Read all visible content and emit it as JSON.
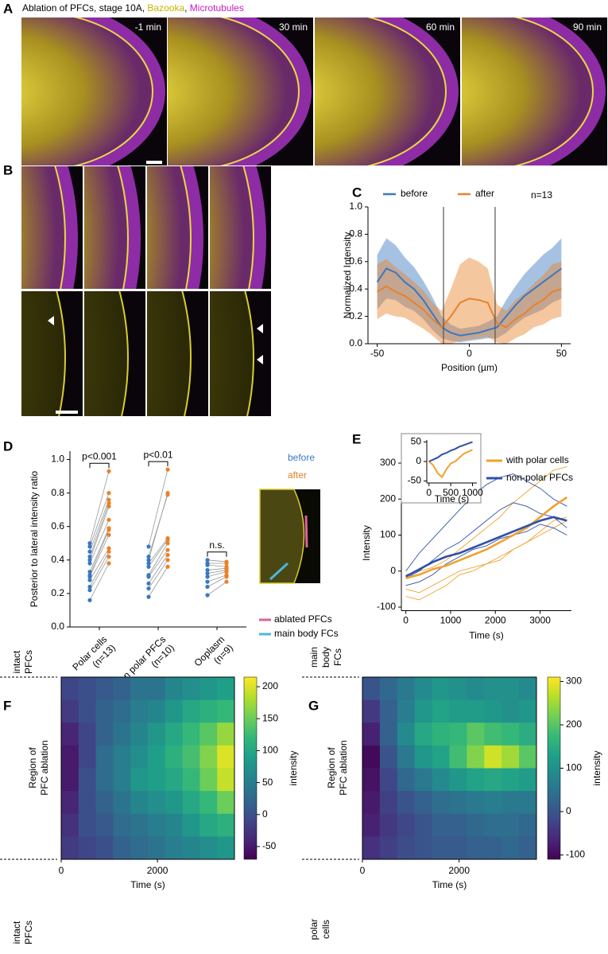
{
  "figure": {
    "panel_labels": [
      "A",
      "B",
      "C",
      "D",
      "E",
      "F",
      "G"
    ],
    "A": {
      "title_parts": [
        "Ablation of PFCs, stage 10A, ",
        "Bazooka",
        ", ",
        "Microtubules"
      ],
      "title_colors": [
        "#000000",
        "#c9b300",
        "#000000",
        "#c21fc2"
      ],
      "times": [
        "-1 min",
        "30 min",
        "60 min",
        "90 min"
      ]
    }
  },
  "chart_data": [
    {
      "type": "line_band",
      "x": [
        -50,
        -45,
        -40,
        -35,
        -30,
        -25,
        -20,
        -15,
        -10,
        -5,
        0,
        5,
        10,
        15,
        20,
        25,
        30,
        35,
        40,
        45,
        50
      ],
      "series": [
        {
          "name": "before",
          "color": "#3a78c0",
          "values": [
            0.45,
            0.55,
            0.52,
            0.45,
            0.4,
            0.32,
            0.22,
            0.12,
            0.08,
            0.06,
            0.07,
            0.08,
            0.1,
            0.12,
            0.2,
            0.28,
            0.35,
            0.4,
            0.45,
            0.5,
            0.55
          ],
          "errors": [
            0.2,
            0.22,
            0.2,
            0.18,
            0.16,
            0.14,
            0.12,
            0.08,
            0.06,
            0.05,
            0.05,
            0.05,
            0.06,
            0.08,
            0.12,
            0.14,
            0.16,
            0.18,
            0.2,
            0.2,
            0.22
          ]
        },
        {
          "name": "after",
          "color": "#e8822a",
          "values": [
            0.38,
            0.42,
            0.38,
            0.35,
            0.3,
            0.25,
            0.18,
            0.12,
            0.2,
            0.3,
            0.33,
            0.32,
            0.3,
            0.15,
            0.12,
            0.18,
            0.22,
            0.28,
            0.32,
            0.38,
            0.4
          ],
          "errors": [
            0.2,
            0.2,
            0.18,
            0.16,
            0.15,
            0.14,
            0.12,
            0.12,
            0.2,
            0.28,
            0.3,
            0.28,
            0.25,
            0.14,
            0.12,
            0.14,
            0.15,
            0.16,
            0.18,
            0.2,
            0.2
          ]
        }
      ],
      "xlim": [
        -55,
        55
      ],
      "ylim": [
        0,
        1
      ],
      "xticks": [
        -50,
        0,
        50
      ],
      "yticks": [
        {
          "value": 0,
          "label": "0.0"
        },
        0.2,
        0.4,
        0.6,
        0.8,
        {
          "value": 1,
          "label": "1.0"
        }
      ],
      "vlines": [
        -14,
        14
      ],
      "xlabel": "Position (µm)",
      "ylabel": "Normalized Intensity",
      "annotation": "n=13"
    },
    {
      "type": "paired_scatter",
      "categories": [
        "Polar cells",
        "Non polar PFCs",
        "Ooplasm"
      ],
      "category_notes": [
        "(n=13)",
        "(n=10)",
        "(n=9)"
      ],
      "significance": [
        "p<0.001",
        "p<0.01",
        "n.s."
      ],
      "series": [
        {
          "name": "before",
          "color": "#3a78c0",
          "values": [
            [
              0.16,
              0.22,
              0.24,
              0.28,
              0.3,
              0.31,
              0.33,
              0.38,
              0.4,
              0.42,
              0.45,
              0.48,
              0.5
            ],
            [
              0.18,
              0.23,
              0.26,
              0.3,
              0.31,
              0.36,
              0.38,
              0.4,
              0.42,
              0.48
            ],
            [
              0.19,
              0.24,
              0.27,
              0.3,
              0.32,
              0.34,
              0.37,
              0.38,
              0.4
            ]
          ]
        },
        {
          "name": "after",
          "color": "#e8822a",
          "values": [
            [
              0.38,
              0.42,
              0.45,
              0.47,
              0.55,
              0.58,
              0.59,
              0.64,
              0.72,
              0.74,
              0.76,
              0.8,
              0.93
            ],
            [
              0.36,
              0.4,
              0.43,
              0.46,
              0.5,
              0.52,
              0.53,
              0.8,
              0.79,
              0.94
            ],
            [
              0.27,
              0.3,
              0.31,
              0.33,
              0.34,
              0.35,
              0.36,
              0.38,
              0.39
            ]
          ]
        }
      ],
      "ylim": [
        0,
        1.05
      ],
      "yticks": [
        {
          "value": 0,
          "label": "0.0"
        },
        0.2,
        0.4,
        0.6,
        0.8,
        {
          "value": 1,
          "label": "1.0"
        }
      ],
      "ylabel": "Posterior to lateral intensity ratio",
      "image_legend": [
        {
          "name": "ablated PFCs",
          "color": "#e0609c"
        },
        {
          "name": "main body FCs",
          "color": "#4cb6e0"
        }
      ]
    },
    {
      "type": "line",
      "x": [
        0,
        300,
        600,
        900,
        1200,
        1500,
        1800,
        2100,
        2400,
        2700,
        3000,
        3300,
        3600
      ],
      "series": [
        {
          "name": "with polar cells",
          "color": "#f0a22e",
          "values": [
            -20,
            -10,
            5,
            15,
            30,
            45,
            60,
            80,
            100,
            120,
            150,
            180,
            205
          ],
          "traces": [
            [
              -10,
              0,
              10,
              30,
              60,
              90,
              120,
              150,
              190,
              220,
              250,
              280,
              290
            ],
            [
              -50,
              -60,
              -40,
              -20,
              0,
              10,
              20,
              40,
              60,
              80,
              100,
              120,
              140
            ],
            [
              -70,
              -80,
              -60,
              -40,
              -10,
              0,
              20,
              30,
              60,
              80,
              110,
              140,
              150
            ]
          ],
          "inset_values": [
            0,
            -10,
            -30,
            -40,
            -20,
            -5,
            0,
            10,
            20,
            25,
            30
          ]
        },
        {
          "name": "non-polar PFCs",
          "color": "#2f4fa8",
          "values": [
            -15,
            5,
            25,
            40,
            50,
            65,
            80,
            95,
            110,
            125,
            140,
            150,
            140
          ],
          "traces": [
            [
              0,
              50,
              90,
              130,
              170,
              210,
              240,
              260,
              270,
              250,
              230,
              200,
              180
            ],
            [
              -20,
              0,
              30,
              60,
              80,
              110,
              140,
              170,
              190,
              180,
              160,
              150,
              120
            ],
            [
              -40,
              -30,
              -10,
              20,
              40,
              60,
              70,
              90,
              100,
              110,
              130,
              120,
              100
            ]
          ],
          "inset_values": [
            0,
            5,
            10,
            18,
            22,
            28,
            32,
            38,
            42,
            46,
            50
          ]
        }
      ],
      "xlim": [
        -100,
        3700
      ],
      "ylim": [
        -110,
        310
      ],
      "xticks": [
        0,
        1000,
        2000,
        3000
      ],
      "yticks": [
        -100,
        0,
        100,
        200,
        300
      ],
      "xlabel": "Time (s)",
      "ylabel": "Intensity",
      "inset": {
        "x": [
          0,
          100,
          200,
          300,
          400,
          500,
          600,
          700,
          800,
          900,
          1000
        ],
        "xlim": [
          -50,
          1100
        ],
        "ylim": [
          -55,
          55
        ],
        "xticks": [
          0,
          500,
          1000
        ],
        "yticks": [
          -50,
          0,
          50
        ],
        "xlabel": "Time (s)"
      }
    },
    {
      "type": "heatmap",
      "matrix": [
        [
          -10,
          0,
          10,
          20,
          40,
          40,
          60,
          70,
          80,
          90
        ],
        [
          -20,
          0,
          20,
          30,
          50,
          60,
          80,
          100,
          110,
          120
        ],
        [
          -40,
          -10,
          20,
          40,
          60,
          80,
          100,
          120,
          140,
          170
        ],
        [
          -50,
          -10,
          30,
          50,
          70,
          90,
          110,
          130,
          160,
          200
        ],
        [
          -50,
          0,
          30,
          50,
          80,
          90,
          100,
          120,
          150,
          190
        ],
        [
          -40,
          0,
          20,
          40,
          60,
          70,
          80,
          100,
          120,
          150
        ],
        [
          -30,
          0,
          10,
          30,
          40,
          50,
          60,
          80,
          100,
          110
        ],
        [
          -20,
          -10,
          0,
          20,
          30,
          40,
          50,
          60,
          70,
          80
        ]
      ],
      "xlim": [
        0,
        3600
      ],
      "xticks": [
        0,
        2000
      ],
      "xlabel": "Time (s)",
      "clim": [
        -70,
        215
      ],
      "cticks": [
        -50,
        0,
        50,
        100,
        150,
        200
      ],
      "clabel": "intensity",
      "region_labels": {
        "top": [
          "intact",
          "PFCs"
        ],
        "middle": [
          "Region of",
          "PFC ablation"
        ],
        "bottom": [
          "intact",
          "PFCs"
        ]
      }
    },
    {
      "type": "heatmap",
      "matrix": [
        [
          0,
          30,
          60,
          90,
          110,
          100,
          90,
          100,
          100,
          90
        ],
        [
          -40,
          20,
          70,
          110,
          130,
          120,
          120,
          110,
          100,
          110
        ],
        [
          -70,
          20,
          90,
          140,
          160,
          170,
          200,
          180,
          170,
          150
        ],
        [
          -100,
          0,
          60,
          110,
          130,
          180,
          230,
          280,
          250,
          200
        ],
        [
          -90,
          -20,
          30,
          60,
          90,
          110,
          130,
          140,
          130,
          120
        ],
        [
          -80,
          -30,
          0,
          20,
          40,
          50,
          60,
          70,
          60,
          60
        ],
        [
          -70,
          -40,
          -20,
          0,
          20,
          20,
          30,
          40,
          40,
          30
        ],
        [
          -50,
          -30,
          -10,
          0,
          10,
          10,
          20,
          20,
          30,
          20
        ]
      ],
      "xlim": [
        0,
        3600
      ],
      "xticks": [
        0,
        2000
      ],
      "xlabel": "Time (s)",
      "clim": [
        -110,
        310
      ],
      "cticks": [
        -100,
        0,
        100,
        200,
        300
      ],
      "clabel": "intensity",
      "region_labels": {
        "top": [
          "main",
          "body",
          "FCs"
        ],
        "middle": [
          "Region of",
          "PFC ablation"
        ],
        "bottom": [
          "polar",
          "cells"
        ]
      }
    }
  ]
}
